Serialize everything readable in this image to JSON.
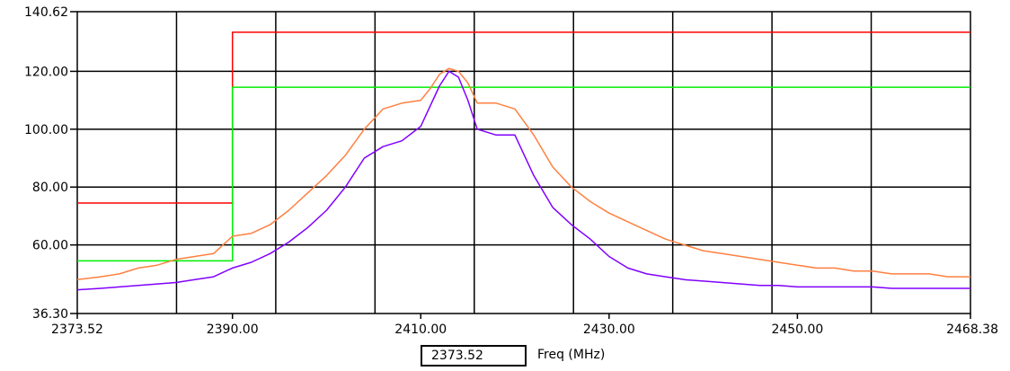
{
  "chart_data": {
    "type": "line",
    "title": "",
    "xlabel": "Freq (MHz)",
    "ylabel": "",
    "xlim": [
      2373.52,
      2468.38
    ],
    "ylim": [
      36.3,
      140.62
    ],
    "x_ticks": [
      "2373.52",
      "2390.00",
      "2410.00",
      "2430.00",
      "2450.00",
      "2468.38"
    ],
    "y_ticks": [
      "36.30",
      "60.00",
      "80.00",
      "100.00",
      "120.00",
      "140.62"
    ],
    "grid": true,
    "colors": {
      "limit_upper": "#ff0000",
      "limit_lower": "#00ee00",
      "peak_trace": "#ff8040",
      "average_trace": "#8000ff",
      "grid": "#000000"
    },
    "series": [
      {
        "x": [
          2373.52,
          2390.0,
          2390.0,
          2468.38
        ],
        "values": [
          74.5,
          74.5,
          133.5,
          133.5
        ]
      },
      {
        "x": [
          2373.52,
          2390.0,
          2390.0,
          2468.38
        ],
        "values": [
          54.5,
          54.5,
          114.5,
          114.5
        ]
      },
      {
        "x": [
          2373.52,
          2376,
          2378,
          2380,
          2382,
          2384,
          2386,
          2388,
          2390,
          2392,
          2394,
          2396,
          2398,
          2400,
          2402,
          2404,
          2406,
          2408,
          2410,
          2411,
          2412,
          2413,
          2414,
          2415,
          2416,
          2418,
          2420,
          2422,
          2424,
          2426,
          2428,
          2430,
          2432,
          2434,
          2436,
          2438,
          2440,
          2442,
          2444,
          2446,
          2448,
          2450,
          2452,
          2454,
          2456,
          2458,
          2460,
          2462,
          2464,
          2466,
          2468.38
        ],
        "values": [
          48,
          49,
          50,
          52,
          53,
          55,
          56,
          57,
          63,
          64,
          67,
          72,
          78,
          84,
          91,
          100,
          107,
          109,
          110,
          114,
          119,
          121,
          120,
          116,
          109,
          109,
          107,
          98,
          87,
          80,
          75,
          71,
          68,
          65,
          62,
          60,
          58,
          57,
          56,
          55,
          54,
          53,
          52,
          52,
          51,
          51,
          50,
          50,
          50,
          49,
          49
        ]
      },
      {
        "x": [
          2373.52,
          2376,
          2378,
          2380,
          2382,
          2384,
          2386,
          2388,
          2390,
          2392,
          2394,
          2396,
          2398,
          2400,
          2402,
          2404,
          2406,
          2408,
          2410,
          2411,
          2412,
          2413,
          2414,
          2415,
          2416,
          2418,
          2420,
          2422,
          2424,
          2426,
          2428,
          2430,
          2432,
          2434,
          2436,
          2438,
          2440,
          2442,
          2444,
          2446,
          2448,
          2450,
          2452,
          2454,
          2456,
          2458,
          2460,
          2462,
          2464,
          2466,
          2468.38
        ],
        "values": [
          44.5,
          45,
          45.5,
          46,
          46.5,
          47,
          48,
          49,
          52,
          54,
          57,
          61,
          66,
          72,
          80,
          90,
          94,
          96,
          101,
          108,
          115,
          120,
          118,
          110,
          100,
          98,
          98,
          84,
          73,
          67,
          62,
          56,
          52,
          50,
          49,
          48,
          47.5,
          47,
          46.5,
          46,
          46,
          45.5,
          45.5,
          45.5,
          45.5,
          45.5,
          45,
          45,
          45,
          45,
          45
        ]
      }
    ]
  },
  "cursor": {
    "readout": "2373.52",
    "axis_label": "Freq (MHz)"
  }
}
